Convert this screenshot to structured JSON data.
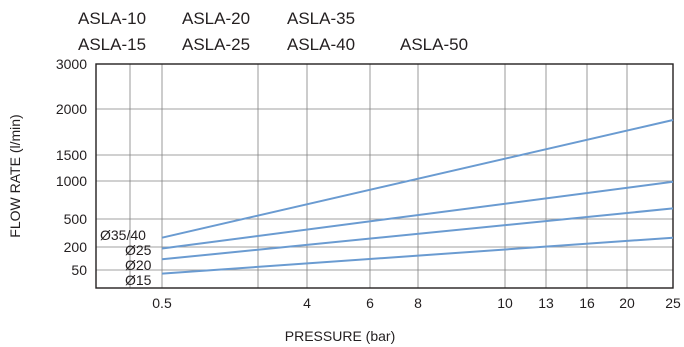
{
  "models": [
    [
      "ASLA-10",
      "ASLA-20",
      "ASLA-35",
      ""
    ],
    [
      "ASLA-15",
      "ASLA-25",
      "ASLA-40",
      "ASLA-50"
    ]
  ],
  "chart_data": {
    "type": "line",
    "xlabel": "PRESSURE (bar)",
    "ylabel": "FLOW RATE  (l/min)",
    "x_ticks": [
      "0.5",
      "4",
      "6",
      "8",
      "10",
      "13",
      "16",
      "20",
      "25"
    ],
    "y_ticks": [
      "3000",
      "2000",
      "1500",
      "1000",
      "500",
      "200",
      "50"
    ],
    "grid": true,
    "series": [
      {
        "name": "Ø35/40",
        "x": [
          0.5,
          25
        ],
        "y": [
          300,
          1880
        ]
      },
      {
        "name": "Ø25",
        "x": [
          0.5,
          25
        ],
        "y": [
          190,
          990
        ]
      },
      {
        "name": "Ø20",
        "x": [
          0.5,
          25
        ],
        "y": [
          120,
          640
        ]
      },
      {
        "name": "Ø15",
        "x": [
          0.5,
          25
        ],
        "y": [
          40,
          300
        ]
      }
    ],
    "colors": {
      "series": "#6a9bd1",
      "grid": "#808080",
      "frame": "#231f20",
      "text": "#231f20"
    }
  }
}
